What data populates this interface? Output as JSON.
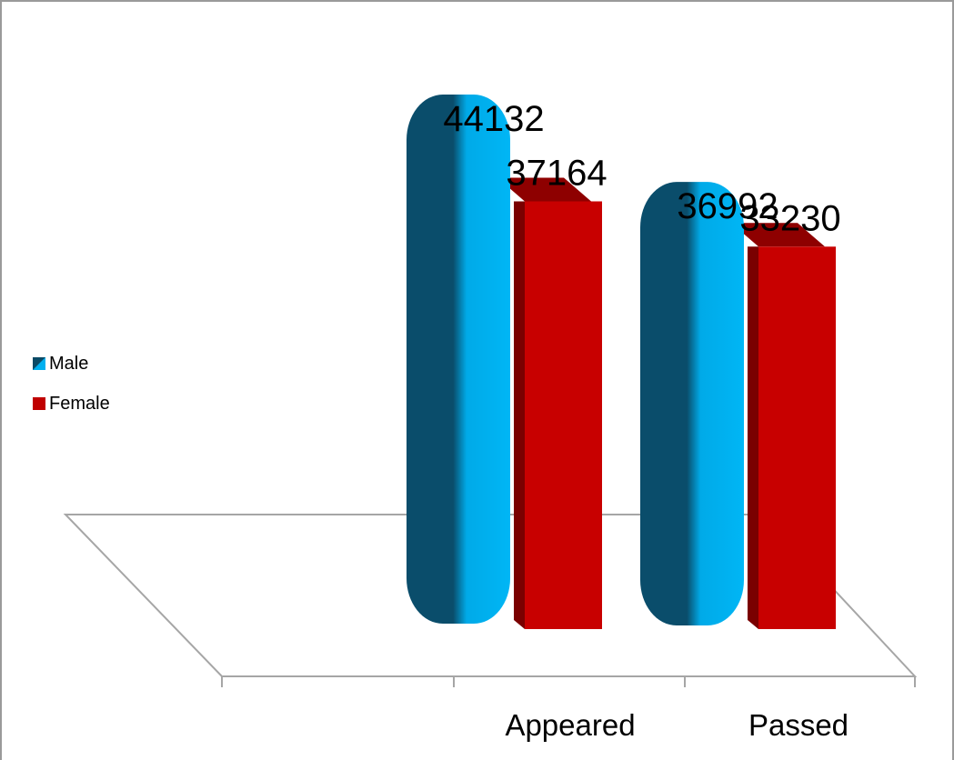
{
  "chart_data": {
    "type": "bar",
    "categories": [
      "Appeared",
      "Passed"
    ],
    "series": [
      {
        "name": "Male",
        "values": [
          44132,
          36992
        ],
        "color": "#00b0f0"
      },
      {
        "name": "Female",
        "values": [
          37164,
          33230
        ],
        "color": "#c00000"
      }
    ],
    "ylim": [
      0,
      48000
    ],
    "legend": "left",
    "grid": false,
    "title": "",
    "xlabel": "",
    "ylabel": ""
  }
}
